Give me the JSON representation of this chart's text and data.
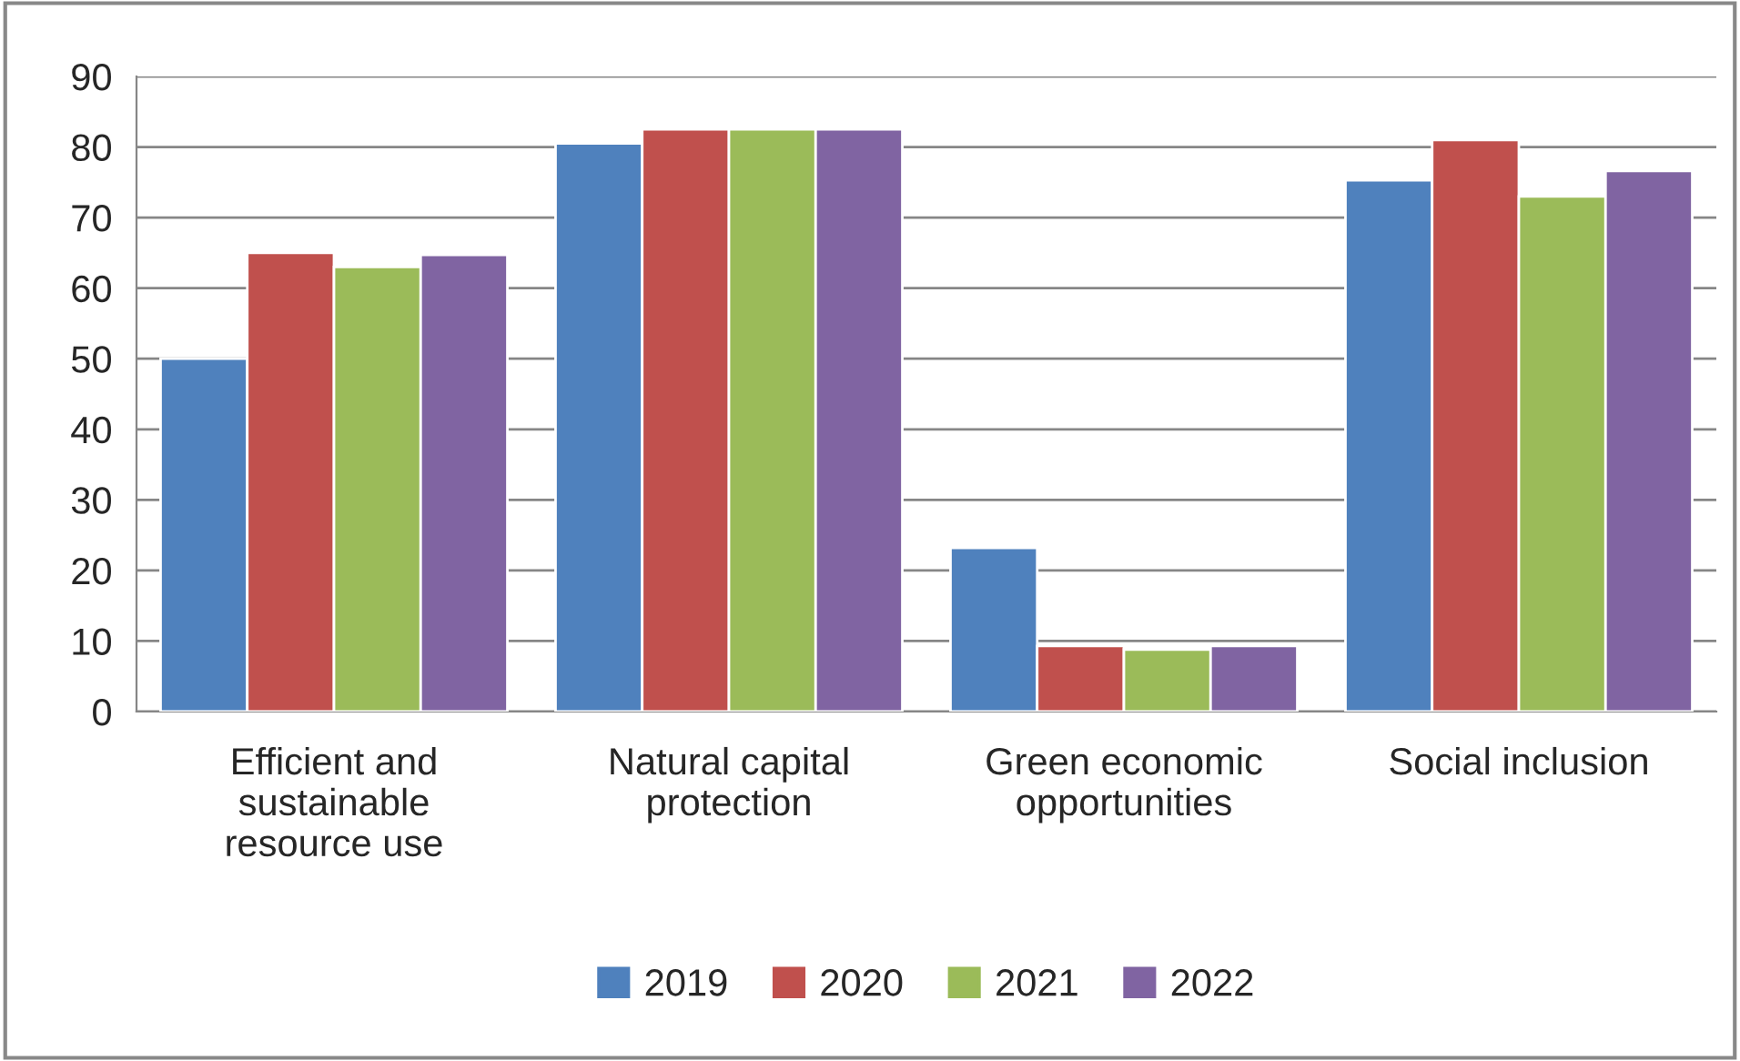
{
  "chart_data": {
    "type": "bar",
    "categories": [
      "Efficient and\nsustainable\nresource use",
      "Natural capital\nprotection",
      "Green economic\nopportunities",
      "Social inclusion"
    ],
    "series": [
      {
        "name": "2019",
        "color": "#4f81bd",
        "values": [
          50.0,
          80.5,
          23.2,
          75.3
        ]
      },
      {
        "name": "2020",
        "color": "#c0504d",
        "values": [
          65.0,
          82.5,
          9.3,
          81.0
        ]
      },
      {
        "name": "2021",
        "color": "#9bbb59",
        "values": [
          63.0,
          82.5,
          8.8,
          73.0
        ]
      },
      {
        "name": "2022",
        "color": "#8064a2",
        "values": [
          64.7,
          82.5,
          9.3,
          76.6
        ]
      }
    ],
    "ylim": [
      0,
      90
    ],
    "yticks": [
      0,
      10,
      20,
      30,
      40,
      50,
      60,
      70,
      80,
      90
    ],
    "grid": "y",
    "legend": "bottom"
  }
}
